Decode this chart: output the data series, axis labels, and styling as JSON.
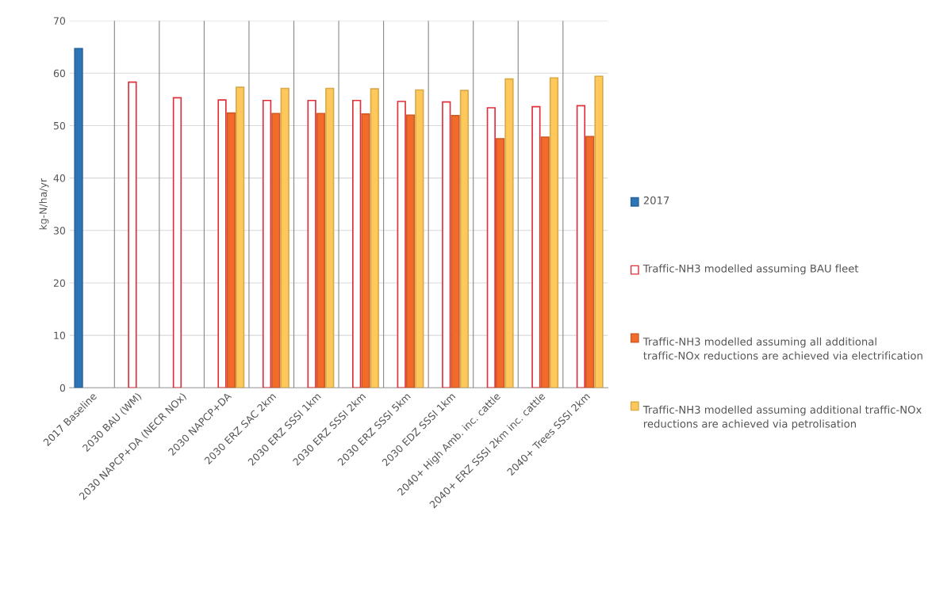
{
  "chart_data": {
    "type": "bar",
    "ylabel": "kg-N/ha/yr",
    "categories": [
      "2017 Baseline",
      "2030 BAU (WM)",
      "2030 NAPCP+DA (NECR NOx)",
      "2030 NAPCP+DA",
      "2030 ERZ SAC 2km",
      "2030 ERZ SSSI 1km",
      "2030 ERZ SSSI 2km",
      "2030 ERZ SSSI 5km",
      "2030 EDZ SSSI 1km",
      "2040+ High Amb. inc. cattle",
      "2040+ ERZ SSSI 2km inc. cattle",
      "2040+ Trees SSSI 2km"
    ],
    "series": [
      {
        "name": "2017",
        "color": "#2e75b6",
        "values": [
          64.7,
          null,
          null,
          null,
          null,
          null,
          null,
          null,
          null,
          null,
          null,
          null
        ]
      },
      {
        "name": "Traffic-NH3 modelled assuming BAU fleet",
        "color": "#e0303a",
        "values": [
          null,
          58.3,
          55.3,
          54.9,
          54.8,
          54.8,
          54.8,
          54.6,
          54.5,
          53.4,
          53.6,
          53.8
        ]
      },
      {
        "name": "Traffic-NH3 modelled assuming all additional traffic-NOx reductions are achieved via electrification",
        "color": "#f26b2a",
        "values": [
          null,
          null,
          null,
          52.4,
          52.3,
          52.3,
          52.2,
          52.0,
          51.9,
          47.5,
          47.8,
          47.9
        ]
      },
      {
        "name": "Traffic-NH3 modelled assuming additional traffic-NOx reductions are achieved via petrolisation",
        "color": "#ffc85a",
        "values": [
          null,
          null,
          null,
          57.3,
          57.1,
          57.1,
          57.0,
          56.8,
          56.7,
          58.9,
          59.1,
          59.4
        ]
      }
    ],
    "ylim": [
      0,
      70
    ],
    "yticks": [
      0,
      10,
      20,
      30,
      40,
      50,
      60,
      70
    ],
    "grid": true,
    "legend": "right"
  }
}
